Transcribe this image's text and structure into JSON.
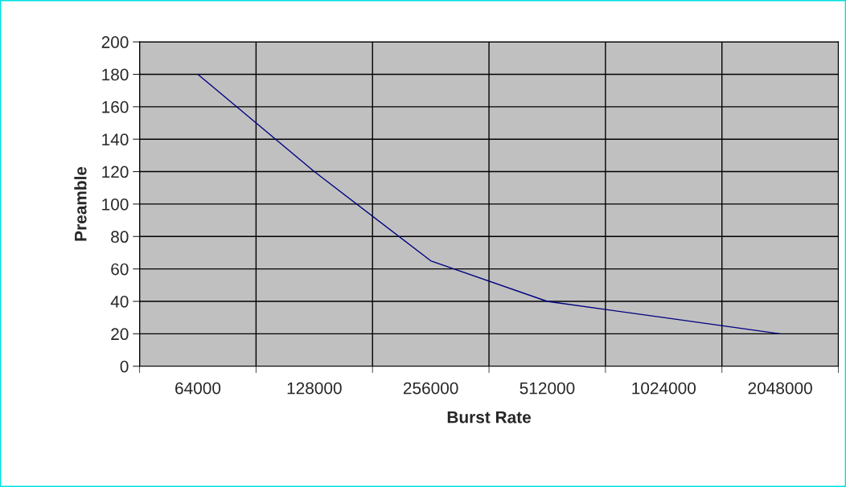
{
  "chart_data": {
    "type": "line",
    "xlabel": "Burst Rate",
    "ylabel": "Preamble",
    "categories": [
      "64000",
      "128000",
      "256000",
      "512000",
      "1024000",
      "2048000"
    ],
    "series": [
      {
        "color": "#000080",
        "values": [
          180,
          120,
          65,
          40,
          30,
          20
        ]
      }
    ],
    "ylim": [
      0,
      200
    ],
    "yticks": [
      0,
      20,
      40,
      60,
      80,
      100,
      120,
      140,
      160,
      180,
      200
    ],
    "grid": true,
    "marker": "none",
    "line_style": "solid",
    "legend": false
  }
}
